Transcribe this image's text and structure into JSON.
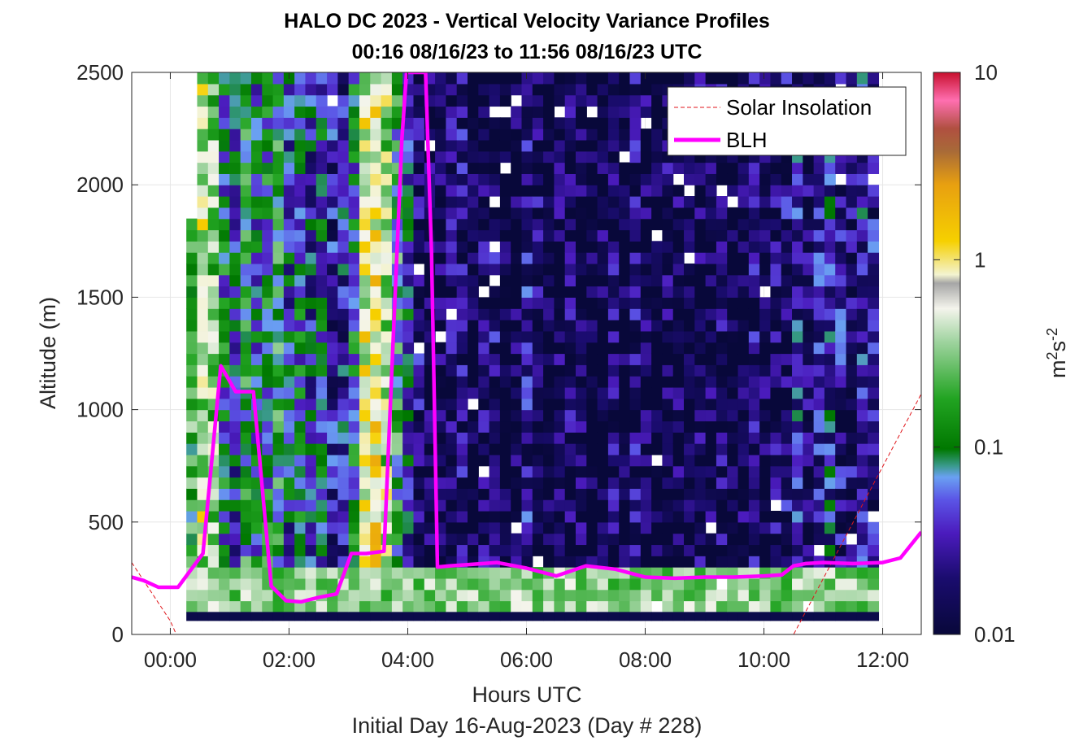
{
  "chart_data": {
    "type": "heatmap",
    "title": "HALO DC 2023 - Vertical Velocity Variance Profiles",
    "subtitle": "00:16 08/16/23 to 11:56 08/16/23  UTC",
    "xlabel": "Hours UTC",
    "xlabel2": "Initial Day 16-Aug-2023 (Day # 228)",
    "ylabel": "Altitude (m)",
    "xlim_hours": [
      -0.65,
      12.65
    ],
    "ylim": [
      0,
      2500
    ],
    "x_ticks": [
      0,
      2,
      4,
      6,
      8,
      10,
      12
    ],
    "x_tick_labels": [
      "00:00",
      "02:00",
      "04:00",
      "06:00",
      "08:00",
      "10:00",
      "12:00"
    ],
    "y_ticks": [
      0,
      500,
      1000,
      1500,
      2000,
      2500
    ],
    "y_tick_labels": [
      "0",
      "500",
      "1000",
      "1500",
      "2000",
      "2500"
    ],
    "grid": true,
    "legend_position": "top-right",
    "colorbar": {
      "label_base": "m",
      "label_exp1": "2",
      "label_mid": "s",
      "label_exp2": "-2",
      "scale": "log",
      "range": [
        0.01,
        10
      ],
      "ticks": [
        0.01,
        0.1,
        1,
        10
      ],
      "tick_labels": [
        "0.01",
        "0.1",
        "1",
        "10"
      ]
    },
    "heatmap": {
      "time_start_h": 0.27,
      "time_end_h": 11.93,
      "column_width_h": 0.183,
      "alt_bin_m": 50,
      "alt_top_m": 2500,
      "colorscale": "log10 variance, m^2 s^-2",
      "column_tops_m": [
        1830,
        2500,
        2500,
        2500,
        2500,
        2500,
        2500,
        2500,
        2500,
        2500,
        2500,
        2500,
        2500,
        2500,
        2500,
        2500,
        2500,
        2500,
        2500,
        2500,
        2500,
        2500,
        2500,
        2500,
        2500,
        2500,
        2500,
        2500,
        2500,
        2500,
        2500,
        2500,
        2500,
        2500,
        2500,
        2500,
        2500,
        2500,
        2500,
        2500,
        2500,
        2500,
        2500,
        2500,
        2500,
        2500,
        2500,
        2500,
        2500,
        2500,
        2500,
        2500,
        2500,
        2500,
        2500,
        2500,
        2500,
        2500,
        2500,
        2500,
        2500,
        2500,
        2500,
        2500
      ],
      "surface_layer_value": 0.01,
      "column_level_log10": [
        -0.8,
        -0.3,
        -0.5,
        -1.1,
        -1.3,
        -0.9,
        -1.2,
        -1.0,
        -0.9,
        -1.3,
        -1.1,
        -1.4,
        -1.2,
        -1.6,
        -1.5,
        -1.1,
        -0.2,
        -0.1,
        -0.4,
        -0.9,
        -1.3,
        -1.7,
        -1.9,
        -1.9,
        -1.8,
        -1.7,
        -2.0,
        -1.8,
        -1.7,
        -2.0,
        -1.9,
        -1.6,
        -1.8,
        -2.0,
        -1.9,
        -1.8,
        -1.9,
        -2.0,
        -1.9,
        -1.8,
        -2.0,
        -1.7,
        -1.9,
        -2.0,
        -1.8,
        -1.9,
        -2.0,
        -1.8,
        -1.9,
        -1.8,
        -2.0,
        -1.9,
        -1.7,
        -1.9,
        -1.8,
        -1.7,
        -1.5,
        -1.8,
        -1.6,
        -1.4,
        -1.6,
        -1.7,
        -1.5,
        -1.6
      ]
    },
    "series": [
      {
        "name": "Solar Insolation",
        "style": "dashed",
        "color": "#e0161b",
        "x": [
          -0.65,
          0.0,
          0.1,
          10.5,
          12.65
        ],
        "y": [
          320,
          60,
          0,
          0,
          1070
        ]
      },
      {
        "name": "BLH",
        "style": "solid",
        "color": "#ff00ff",
        "x": [
          -0.65,
          -0.45,
          -0.2,
          0.13,
          0.55,
          0.85,
          1.1,
          1.4,
          1.7,
          1.95,
          2.2,
          2.5,
          2.8,
          3.05,
          3.3,
          3.6,
          3.9,
          3.98,
          4.08,
          4.18,
          4.3,
          4.4,
          4.5,
          4.7,
          5.0,
          5.5,
          6.0,
          6.5,
          7.0,
          7.5,
          8.0,
          8.5,
          9.0,
          9.5,
          10.0,
          10.3,
          10.5,
          10.7,
          11.0,
          11.5,
          12.0,
          12.3,
          12.65
        ],
        "y": [
          255,
          240,
          210,
          210,
          360,
          1195,
          1080,
          1080,
          215,
          150,
          145,
          165,
          180,
          360,
          360,
          370,
          2200,
          2500,
          2500,
          2500,
          2500,
          1700,
          300,
          305,
          310,
          320,
          295,
          260,
          305,
          290,
          255,
          250,
          255,
          255,
          260,
          265,
          305,
          315,
          320,
          315,
          320,
          340,
          455
        ]
      }
    ],
    "colors": {
      "axes_text": "#262626",
      "grid": "#e6e6e6",
      "surface_layer": "#0b0b4a",
      "blh_line": "#ff00ff",
      "solar_line": "#e0161b"
    }
  }
}
